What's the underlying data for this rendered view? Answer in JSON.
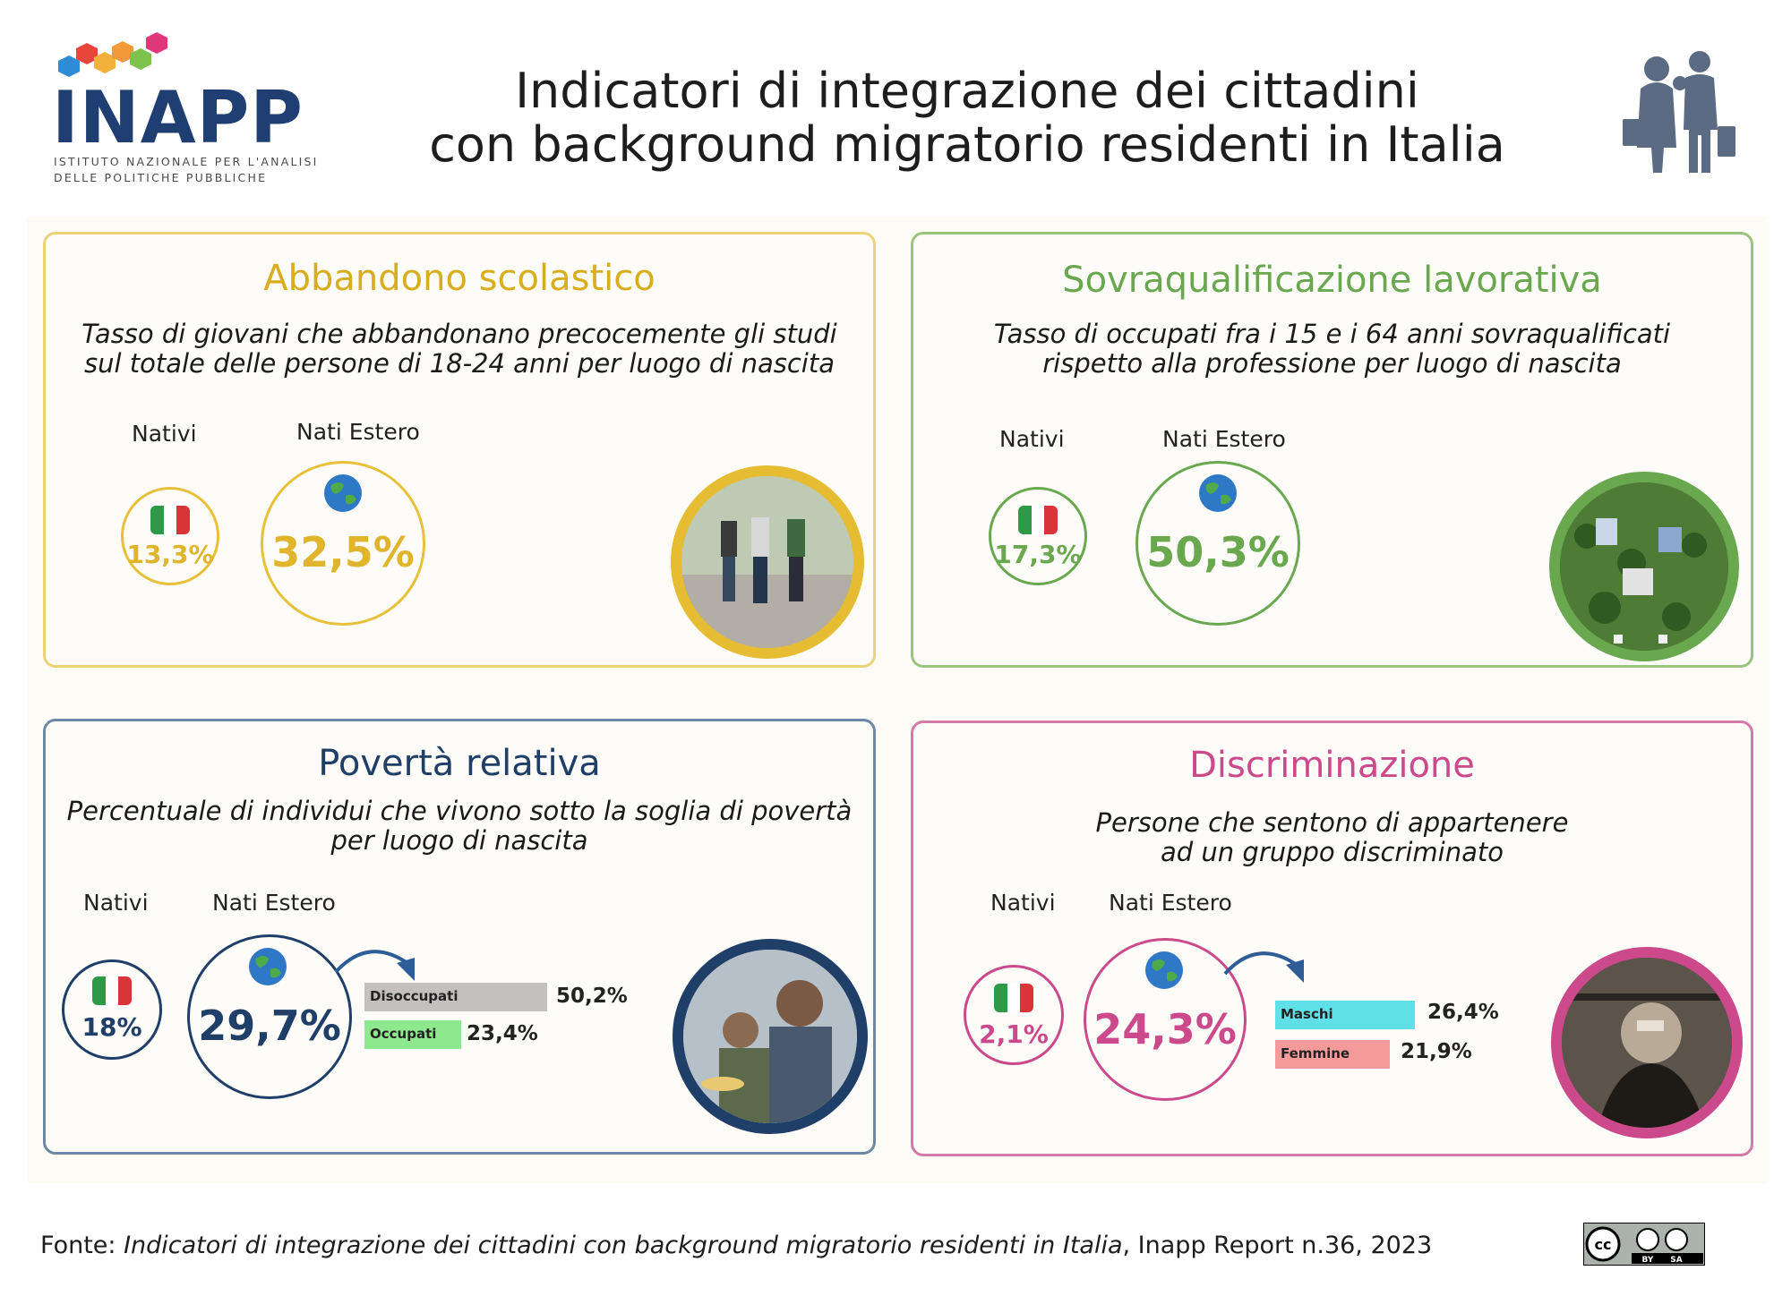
{
  "header": {
    "logo_text": "INAPP",
    "logo_sub_1": "ISTITUTO NAZIONALE PER L'ANALISI",
    "logo_sub_2": "DELLE POLITICHE PUBBLICHE",
    "title_line1": "Indicatori di integrazione dei cittadini",
    "title_line2": "con background migratorio residenti in Italia",
    "icon": "migrant-family-icon"
  },
  "colors": {
    "yellow": "#e8c03a",
    "green": "#6aa84f",
    "navy": "#1f3e68",
    "pink": "#cc4a8c"
  },
  "panels": {
    "abbandono": {
      "title": "Abbandono scolastico",
      "subtitle_1": "Tasso di giovani che abbandonano precocemente gli studi",
      "subtitle_2": "sul totale delle persone di 18-24 anni per luogo di nascita",
      "nativi_label": "Nativi",
      "estero_label": "Nati Estero",
      "nativi_value": "13,3%",
      "estero_value": "32,5%"
    },
    "sovraqualificazione": {
      "title": "Sovraqualificazione lavorativa",
      "subtitle_1": "Tasso di occupati fra i 15 e i 64 anni sovraqualificati",
      "subtitle_2": "rispetto alla professione per luogo di nascita",
      "nativi_label": "Nativi",
      "estero_label": "Nati Estero",
      "nativi_value": "17,3%",
      "estero_value": "50,3%"
    },
    "poverta": {
      "title": "Povertà relativa",
      "subtitle_1": "Percentuale di individui che vivono sotto la soglia di povertà",
      "subtitle_2": "per luogo di nascita",
      "nativi_label": "Nativi",
      "estero_label": "Nati Estero",
      "nativi_value": "18%",
      "estero_value": "29,7%",
      "breakdown": [
        {
          "label": "Disoccupati",
          "value": "50,2%",
          "pct": 50.2,
          "color": "#c4c0c0"
        },
        {
          "label": "Occupati",
          "value": "23,4%",
          "pct": 23.4,
          "color": "#8ee88e"
        }
      ]
    },
    "discriminazione": {
      "title": "Discriminazione",
      "subtitle_1": "Persone che sentono di appartenere",
      "subtitle_2": "ad un gruppo discriminato",
      "nativi_label": "Nativi",
      "estero_label": "Nati Estero",
      "nativi_value": "2,1%",
      "estero_value": "24,3%",
      "breakdown": [
        {
          "label": "Maschi",
          "value": "26,4%",
          "pct": 26.4,
          "color": "#5fe0e6"
        },
        {
          "label": "Femmine",
          "value": "21,9%",
          "pct": 21.9,
          "color": "#f49a9a"
        }
      ]
    }
  },
  "footer": {
    "prefix": "Fonte: ",
    "source_title": "Indicatori di integrazione dei cittadini con background migratorio residenti in Italia",
    "suffix": ", Inapp Report n.36, 2023",
    "license": "cc BY SA"
  }
}
